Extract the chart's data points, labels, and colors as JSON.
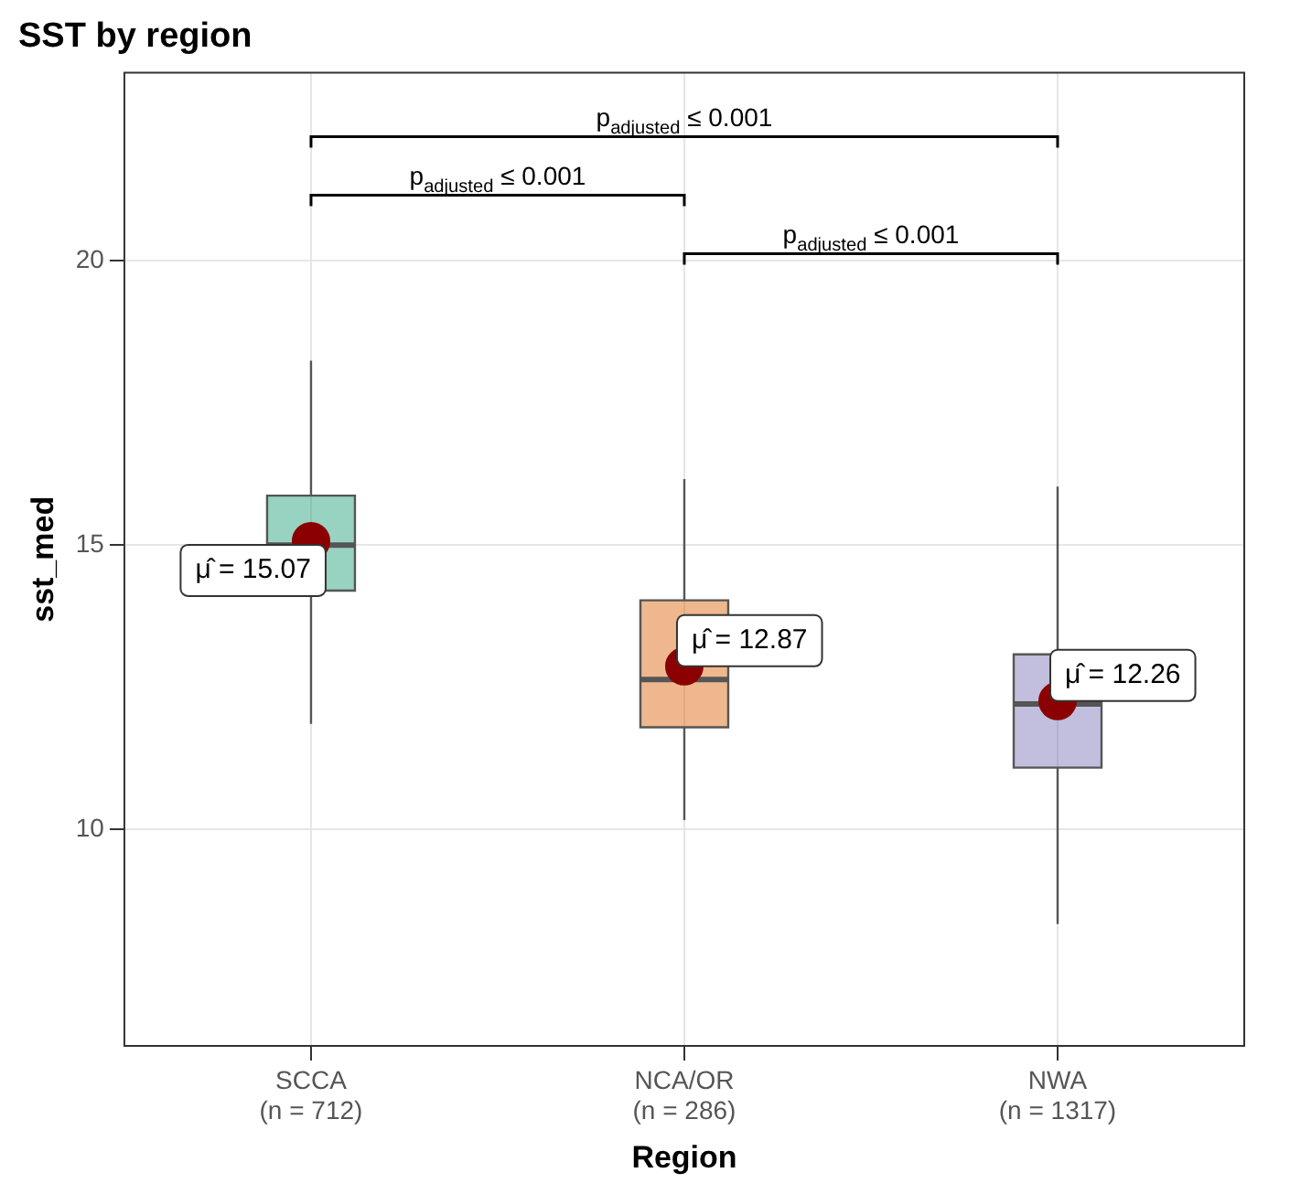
{
  "chart_data": {
    "type": "box",
    "title": "SST by region",
    "xlabel": "Region",
    "ylabel": "sst_med",
    "categories": [
      "SCCA\n(n = 712)",
      "NCA/OR\n(n = 286)",
      "NWA\n(n = 1317)"
    ],
    "colors": [
      "#1b9e77",
      "#d95f02",
      "#7570b3"
    ],
    "boxes": [
      {
        "low": 11.86,
        "q1": 14.2,
        "median": 15.0,
        "q3": 15.87,
        "high": 18.24,
        "mean": 15.07
      },
      {
        "low": 10.17,
        "q1": 11.8,
        "median": 12.64,
        "q3": 14.03,
        "high": 16.16,
        "mean": 12.87
      },
      {
        "low": 8.34,
        "q1": 11.09,
        "median": 12.21,
        "q3": 13.08,
        "high": 16.03,
        "mean": 12.26
      }
    ],
    "ylim": [
      6.2,
      23.3
    ],
    "yticks": [
      10,
      15,
      20
    ],
    "grid": true,
    "annotations": [
      "μ̂ = 15.07",
      "μ̂ = 12.87",
      "μ̂ = 12.26",
      "p$_{adjusted}$ ≤ 0.001",
      "p$_{adjusted}$ ≤ 0.001",
      "p$_{adjusted}$ ≤ 0.001"
    ]
  }
}
